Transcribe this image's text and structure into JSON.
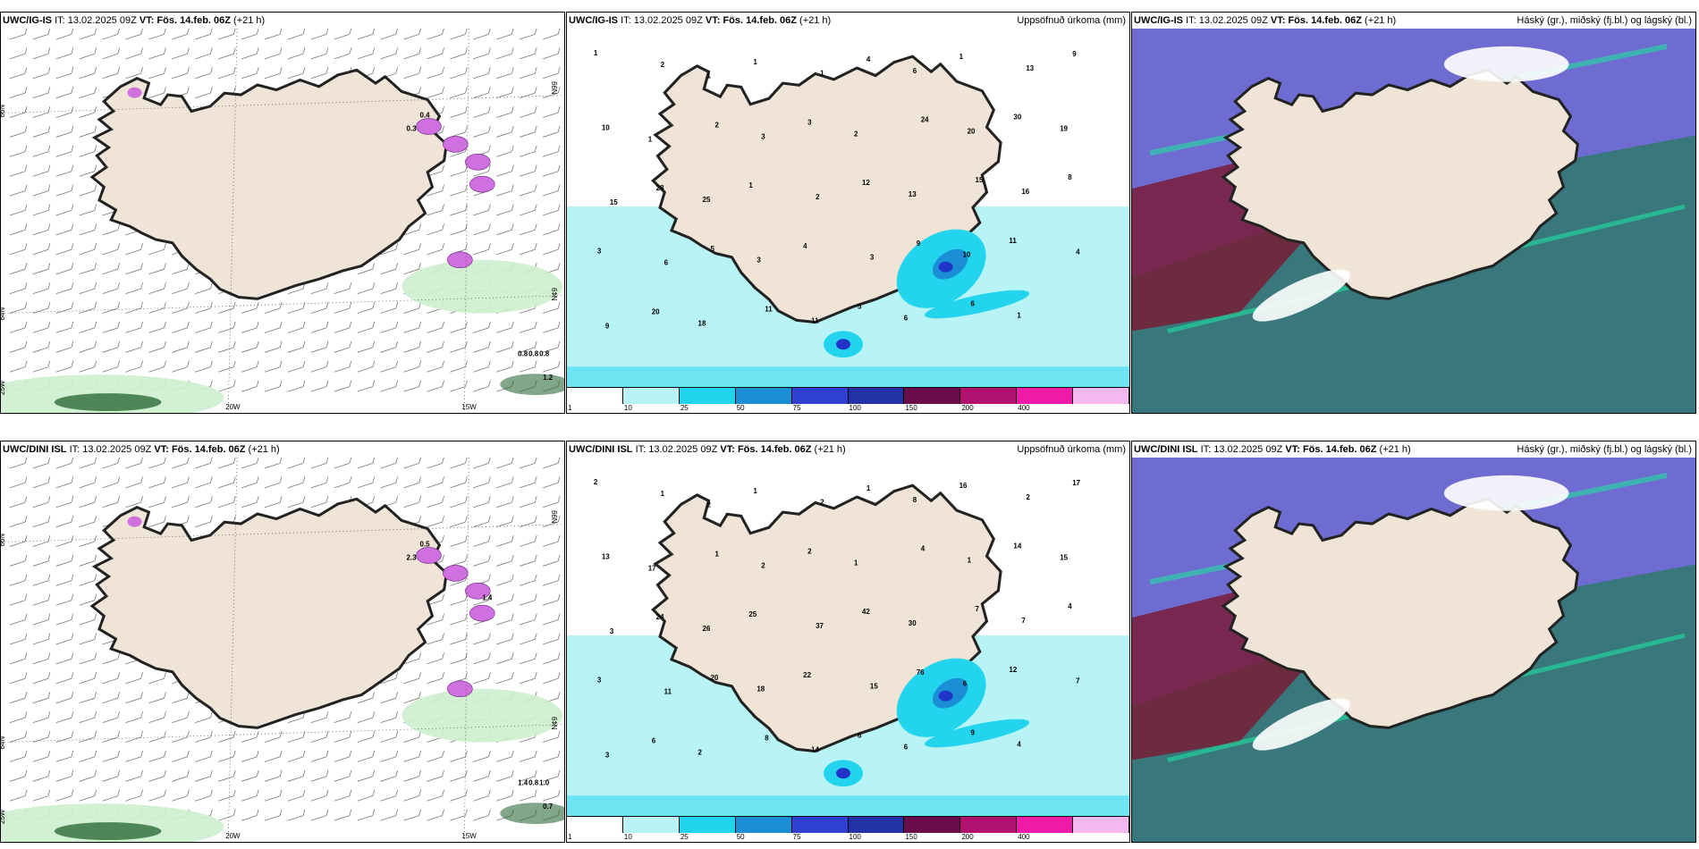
{
  "colors": {
    "land": "#efe4d6",
    "coast": "#222222",
    "precip_light": "#b8f4f6",
    "precip_mid": "#22d4ee",
    "precip_deep": "#1a8fd8",
    "precip_blue": "#2233c8",
    "snow_purple": "#d070e0",
    "wind_barb": "#777777",
    "green_light": "#cdeecd",
    "green_dark": "#2d6b3a",
    "cloud_high": "#5552c8",
    "cloud_mid": "#2f7a6e",
    "cloud_low": "#7a1830"
  },
  "panels": [
    {
      "id": "ig-wind",
      "model": "UWC/IG-IS",
      "it_label": "IT:",
      "it_value": "13.02.2025 09Z",
      "vt_label": "VT:",
      "vt_value": "Fös. 14.feb. 06Z",
      "lead": "(+21 h)",
      "right_title": "",
      "type": "wind",
      "lat_labels": [
        "66N",
        "64N",
        "N99",
        "N¢9"
      ],
      "lon_labels": [
        "20W",
        "15W",
        "25W"
      ],
      "values": [
        "0.4",
        "0.3",
        "0.8",
        "0.8",
        "0.8",
        "1.2"
      ]
    },
    {
      "id": "ig-precip",
      "model": "UWC/IG-IS",
      "it_label": "IT:",
      "it_value": "13.02.2025 09Z",
      "vt_label": "VT:",
      "vt_value": "Fös. 14.feb. 06Z",
      "lead": "(+21 h)",
      "right_title": "Uppsöfnuð úrkoma (mm)",
      "type": "precip",
      "values": [
        "1",
        "2",
        "1",
        "1",
        "1",
        "4",
        "6",
        "1",
        "13",
        "9",
        "10",
        "1",
        "2",
        "3",
        "3",
        "2",
        "24",
        "20",
        "30",
        "19",
        "15",
        "28",
        "25",
        "1",
        "2",
        "12",
        "13",
        "15",
        "16",
        "8",
        "3",
        "6",
        "5",
        "3",
        "4",
        "3",
        "9",
        "10",
        "11",
        "4",
        "9",
        "20",
        "18",
        "11",
        "11",
        "5",
        "6",
        "6",
        "1"
      ]
    },
    {
      "id": "ig-cloud",
      "model": "UWC/IG-IS",
      "it_label": "IT:",
      "it_value": "13.02.2025 09Z",
      "vt_label": "VT:",
      "vt_value": "Fös. 14.feb. 06Z",
      "lead": "(+21 h)",
      "right_title": "Háský (gr.), miðský (fj.bl.) og lágský (bl.)",
      "type": "cloud"
    },
    {
      "id": "dini-wind",
      "model": "UWC/DINI ISL",
      "it_label": "IT:",
      "it_value": "13.02.2025 09Z",
      "vt_label": "VT:",
      "vt_value": "Fös. 14.feb. 06Z",
      "lead": "(+21 h)",
      "right_title": "",
      "type": "wind",
      "lat_labels": [
        "66N",
        "64N",
        "N99",
        "N¢9"
      ],
      "lon_labels": [
        "20W",
        "15W",
        "25W"
      ],
      "values": [
        "0.5",
        "2.3",
        "1.4",
        "0.8",
        "1.0",
        "0.7",
        "1.4"
      ]
    },
    {
      "id": "dini-precip",
      "model": "UWC/DINI ISL",
      "it_label": "IT:",
      "it_value": "13.02.2025 09Z",
      "vt_label": "VT:",
      "vt_value": "Fös. 14.feb. 06Z",
      "lead": "(+21 h)",
      "right_title": "Uppsöfnuð úrkoma (mm)",
      "type": "precip",
      "values": [
        "2",
        "1",
        "2",
        "1",
        "2",
        "1",
        "8",
        "16",
        "2",
        "17",
        "13",
        "17",
        "1",
        "2",
        "2",
        "1",
        "4",
        "1",
        "14",
        "15",
        "3",
        "24",
        "26",
        "25",
        "37",
        "42",
        "30",
        "7",
        "7",
        "4",
        "3",
        "11",
        "20",
        "18",
        "22",
        "15",
        "76",
        "6",
        "12",
        "7",
        "3",
        "6",
        "2",
        "8",
        "14",
        "8",
        "6",
        "9",
        "4"
      ]
    },
    {
      "id": "dini-cloud",
      "model": "UWC/DINI ISL",
      "it_label": "IT:",
      "it_value": "13.02.2025 09Z",
      "vt_label": "VT:",
      "vt_value": "Fös. 14.feb. 06Z",
      "lead": "(+21 h)",
      "right_title": "Háský (gr.), miðský (fj.bl.) og lágský (bl.)",
      "type": "cloud"
    }
  ],
  "colorbar": {
    "labels": [
      "1",
      "10",
      "25",
      "50",
      "75",
      "100",
      "150",
      "200",
      "400"
    ],
    "colors": [
      "#ffffff",
      "#b8f4f6",
      "#22d4ee",
      "#1a8fd8",
      "#3040d0",
      "#2233a8",
      "#6a0d4a",
      "#b0106e",
      "#f01aa8",
      "#f2b8ef"
    ]
  }
}
